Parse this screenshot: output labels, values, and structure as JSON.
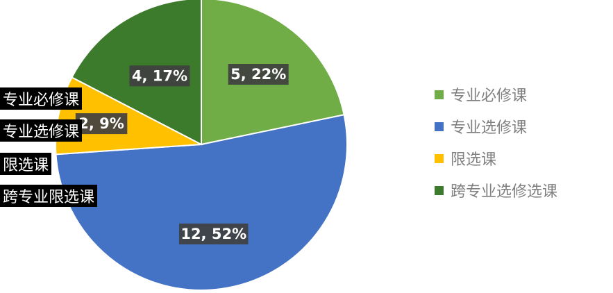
{
  "chart_data": {
    "type": "pie",
    "slices": [
      {
        "value": 5,
        "percent": "22%",
        "label": "5, 22%",
        "color": "#70ad47"
      },
      {
        "value": 12,
        "percent": "52%",
        "label": "12, 52%",
        "color": "#4472c4"
      },
      {
        "value": 2,
        "percent": "9%",
        "label": "2, 9%",
        "color": "#ffc000"
      },
      {
        "value": 4,
        "percent": "17%",
        "label": "4, 17%",
        "color": "#3c7a2c"
      }
    ],
    "legend": [
      "专业必修课",
      "专业选修课",
      "限选课",
      "跨专业选修选课"
    ],
    "legend_position": "right"
  },
  "left_labels": [
    "专业必修课",
    "专业选修课",
    "限选课",
    "跨专业限选课"
  ]
}
